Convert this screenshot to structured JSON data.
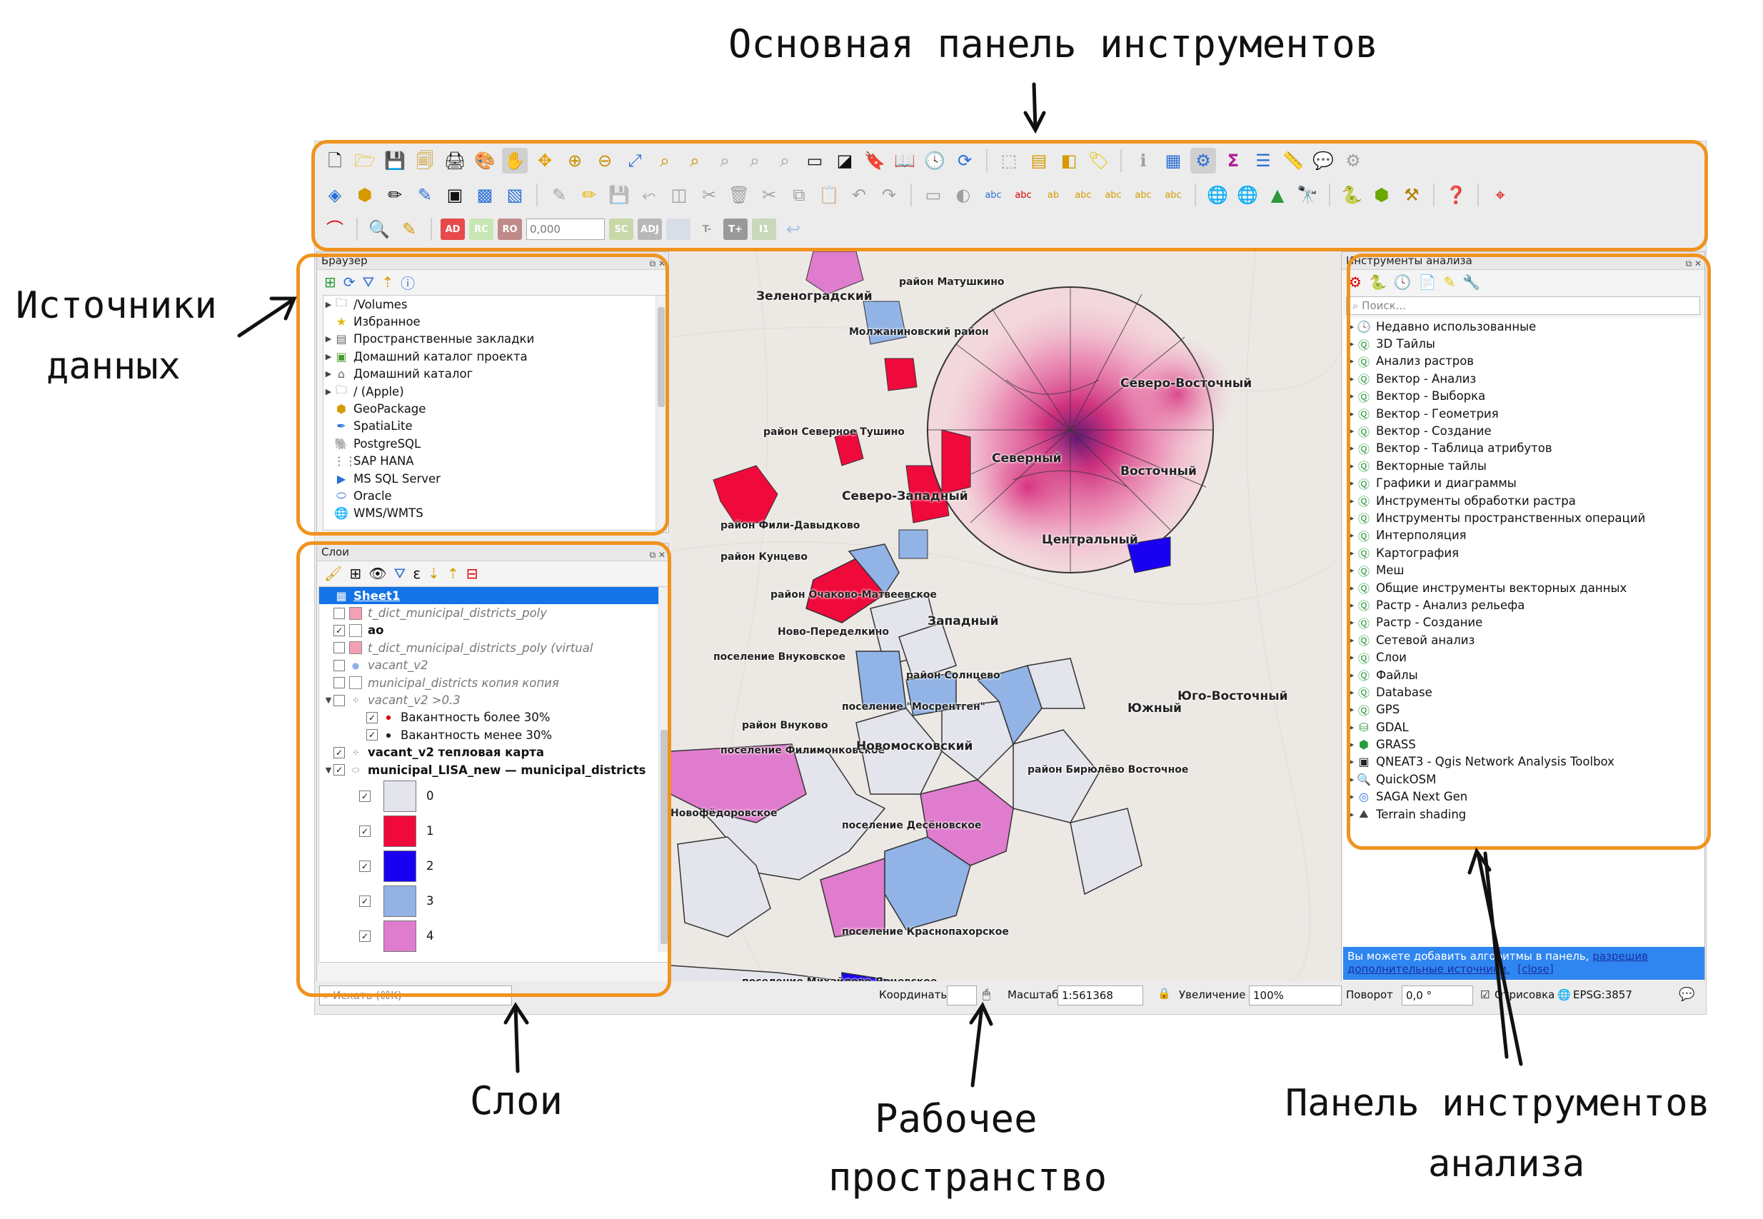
{
  "annotations": {
    "main_toolbar": "Основная панель инструментов",
    "data_sources_line1": "Источники",
    "data_sources_line2": "данных",
    "layers": "Слои",
    "workspace_line1": "Рабочее",
    "workspace_line2": "пространство",
    "analysis_panel_line1": "Панель инструментов",
    "analysis_panel_line2": "анализа"
  },
  "colors": {
    "highlight": "#f0931e",
    "selection": "#1473e6",
    "accent_red": "#f00a3c",
    "accent_blue": "#1a00f0",
    "accent_lightblue": "#92b3e6",
    "accent_pink": "#e07ccd",
    "heat": "#e0157a"
  },
  "toolbar": {
    "row3": {
      "field_value": "0,000",
      "mini_labels": [
        "AD",
        "RC",
        "RO",
        "SC",
        "ADJ",
        "T-",
        "T+",
        "I1"
      ]
    }
  },
  "browser": {
    "title": "Браузер",
    "items": [
      {
        "label": "/Volumes",
        "icon": "folder-icon",
        "expandable": true
      },
      {
        "label": "Избранное",
        "icon": "star-icon",
        "expandable": false
      },
      {
        "label": "Пространственные закладки",
        "icon": "bookmark-icon",
        "expandable": true
      },
      {
        "label": "Домашний каталог проекта",
        "icon": "project-home-icon",
        "expandable": true
      },
      {
        "label": "Домашний каталог",
        "icon": "home-icon",
        "expandable": true
      },
      {
        "label": "/ (Apple)",
        "icon": "folder-icon",
        "expandable": true
      },
      {
        "label": "GeoPackage",
        "icon": "geopackage-icon",
        "expandable": false
      },
      {
        "label": "SpatiaLite",
        "icon": "spatialite-icon",
        "expandable": false
      },
      {
        "label": "PostgreSQL",
        "icon": "postgresql-icon",
        "expandable": false
      },
      {
        "label": "SAP HANA",
        "icon": "sap-hana-icon",
        "expandable": false
      },
      {
        "label": "MS SQL Server",
        "icon": "mssql-icon",
        "expandable": false
      },
      {
        "label": "Oracle",
        "icon": "oracle-icon",
        "expandable": false
      },
      {
        "label": "WMS/WMTS",
        "icon": "globe-icon",
        "expandable": false
      }
    ]
  },
  "layers": {
    "title": "Слои",
    "items": [
      {
        "label": "Sheet1",
        "selected": true,
        "checked": null,
        "style": "bold-underline"
      },
      {
        "label": "t_dict_municipal_districts_poly",
        "checked": false,
        "style": "italic",
        "swatch": "#f4a0b4"
      },
      {
        "label": "ao",
        "checked": true,
        "style": "bold",
        "swatch": "#ffffff"
      },
      {
        "label": "t_dict_municipal_districts_poly (virtual",
        "checked": false,
        "style": "italic",
        "swatch": "#f4a0b4"
      },
      {
        "label": "vacant_v2",
        "checked": false,
        "style": "italic",
        "swatch": "dot"
      },
      {
        "label": "municipal_districts копия копия",
        "checked": false,
        "style": "italic",
        "swatch": "#ffffff"
      },
      {
        "label": "vacant_v2 >0.3",
        "checked": false,
        "style": "italic",
        "swatch": "points"
      },
      {
        "label": "Вакантность более 30%",
        "checked": true,
        "style": "normal",
        "swatch": "reddot",
        "indent": true
      },
      {
        "label": "Вакантность менее 30%",
        "checked": true,
        "style": "normal",
        "swatch": "blackdot",
        "indent": true
      },
      {
        "label": "vacant_v2 тепловая карта",
        "checked": true,
        "style": "bold",
        "swatch": "points"
      },
      {
        "label": "municipal_LISA_new — municipal_districts",
        "checked": true,
        "style": "bold",
        "swatch": "poly"
      }
    ],
    "legend": [
      {
        "label": "0",
        "color": "#e4e4ec"
      },
      {
        "label": "1",
        "color": "#f00a3c"
      },
      {
        "label": "2",
        "color": "#1a00f0"
      },
      {
        "label": "3",
        "color": "#92b3e6"
      },
      {
        "label": "4",
        "color": "#e07ccd"
      }
    ]
  },
  "processing": {
    "title": "Инструменты анализа",
    "search_placeholder": "Поиск...",
    "items": [
      "Недавно использованные",
      "3D Тайлы",
      "Анализ растров",
      "Вектор - Анализ",
      "Вектор - Выборка",
      "Вектор - Геометрия",
      "Вектор - Создание",
      "Вектор - Таблица атрибутов",
      "Векторные тайлы",
      "Графики и диаграммы",
      "Инструменты обработки растра",
      "Инструменты пространственных операций",
      "Интерполяция",
      "Картография",
      "Меш",
      "Общие инструменты векторных данных",
      "Растр - Анализ рельефа",
      "Растр - Создание",
      "Сетевой анализ",
      "Слои",
      "Файлы",
      "Database",
      "GPS",
      "GDAL",
      "GRASS",
      "QNEAT3 - Qgis Network Analysis Toolbox",
      "QuickOSM",
      "SAGA Next Gen",
      "Terrain shading"
    ],
    "info_text": "Вы можете добавить алгоритмы в панель,",
    "info_link": "разрешив дополнительные источники.",
    "info_close": "[close]"
  },
  "map": {
    "labels": [
      "район Матушкино",
      "Зеленоградский",
      "Молжаниновский район",
      "Северо-Восточный",
      "район Северное Тушино",
      "Северный",
      "Восточный",
      "Северо-Западный",
      "район Фили-Давыдково",
      "Центральный",
      "район Кунцево",
      "район Очаково-Матвеевское",
      "Западный",
      "Ново-Переделкино",
      "поселение Внуковское",
      "район Солнцево",
      "Юго-Восточный",
      "поселение \"Мосрентген\"",
      "Южный",
      "район Внуково",
      "поселение Филимонковское",
      "Новомосковский",
      "район Бирюлёво Восточное",
      "Новофёдоровское",
      "поселение Десёновское",
      "поселение Краснопахорское",
      "поселение Михайлово-Ярцевское"
    ]
  },
  "statusbar": {
    "search_placeholder": "Искать (⌘K)",
    "coords_label": "Координаты",
    "scale_label": "Масштаб",
    "scale_value": "1:561368",
    "magnifier_label": "Увеличение",
    "magnifier_value": "100%",
    "rotation_label": "Поворот",
    "rotation_value": "0,0 °",
    "render_label": "Отрисовка",
    "crs": "EPSG:3857"
  }
}
